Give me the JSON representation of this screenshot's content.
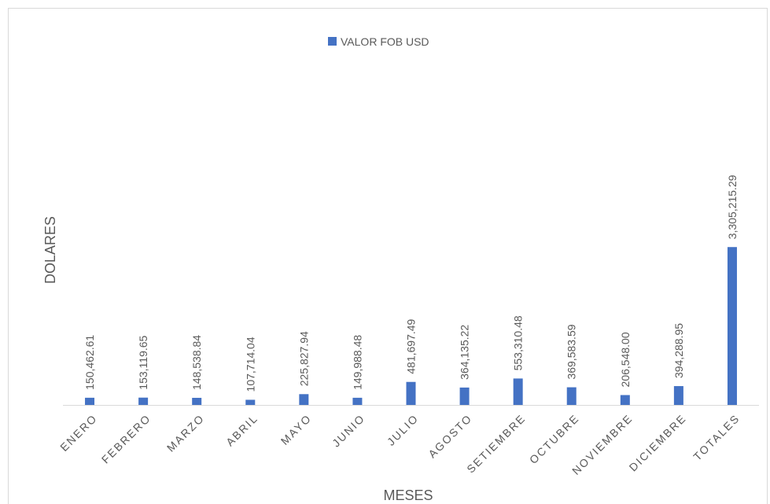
{
  "chart_data": {
    "type": "bar",
    "legend": "VALOR FOB USD",
    "y_label": "DOLARES",
    "x_label": "MESES",
    "categories": [
      "ENERO",
      "FEBRERO",
      "MARZO",
      "ABRIL",
      "MAYO",
      "JUNIO",
      "JULIO",
      "AGOSTO",
      "SETIEMBRE",
      "OCTUBRE",
      "NOVIEMBRE",
      "DICIEMBRE",
      "TOTALES"
    ],
    "values": [
      150462.61,
      153119.65,
      148538.84,
      107714.04,
      225827.94,
      149988.48,
      481697.49,
      364135.22,
      553310.48,
      369583.59,
      206548.0,
      394288.95,
      3305215.29
    ],
    "value_labels": [
      "150,462.61",
      "153,119.65",
      "148,538.84",
      "107,714.04",
      "225,827.94",
      "149,988.48",
      "481,697.49",
      "364,135.22",
      "553,310.48",
      "369,583.59",
      "206,548.00",
      "394,288.95",
      "3,305,215.29"
    ],
    "color": "#4472c4",
    "ylim": [
      0,
      6700000
    ],
    "legend_position": "top"
  }
}
